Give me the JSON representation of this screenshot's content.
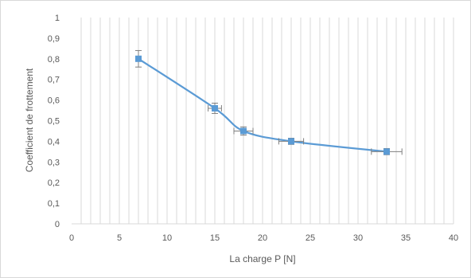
{
  "chart_data": {
    "type": "line",
    "title": "",
    "xlabel": "La charge P [N]",
    "ylabel": "Coefficient de frottement",
    "xlim": [
      0,
      40
    ],
    "ylim": [
      0,
      1
    ],
    "x_ticks": [
      "0",
      "5",
      "10",
      "15",
      "20",
      "25",
      "30",
      "35",
      "40"
    ],
    "y_ticks": [
      "0",
      "0,1",
      "0,2",
      "0,3",
      "0,4",
      "0,5",
      "0,6",
      "0,7",
      "0,8",
      "0,9",
      "1"
    ],
    "grid": "vertical",
    "legend": "none",
    "smooth": true,
    "series": [
      {
        "x": [
          7,
          15,
          18,
          23,
          33
        ],
        "y": [
          0.8,
          0.56,
          0.45,
          0.4,
          0.35
        ],
        "y_error": [
          0.04,
          0.025,
          0.02,
          0.015,
          0.015
        ],
        "x_error": [
          0,
          0.7,
          1.0,
          1.3,
          1.6
        ]
      }
    ],
    "colors": {
      "series": "#5b9bd5",
      "error_bar": "#7f7f7f",
      "grid": "#d9d9d9",
      "axis_text": "#595959"
    }
  }
}
